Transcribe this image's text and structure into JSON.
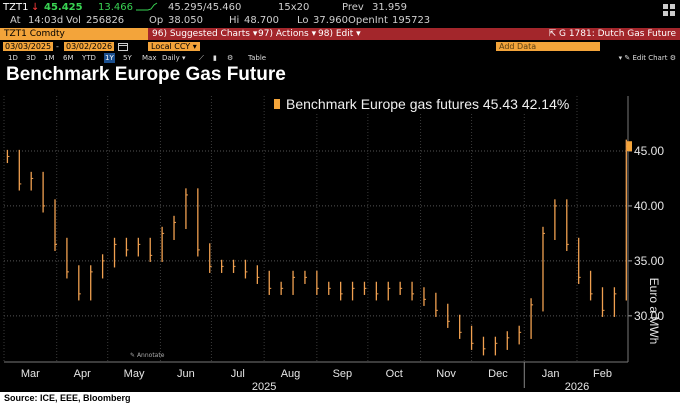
{
  "quote": {
    "ticker": "TZT1",
    "arrow": "↓",
    "last": "45.425",
    "change": "13.466",
    "bid_ask": "45.295/45.460",
    "size": "15x20",
    "prev_label": "Prev",
    "prev": "31.959",
    "at_label": "At",
    "time": "14:03d",
    "vol_label": "Vol",
    "vol": "256826",
    "op_label": "Op",
    "open": "38.050",
    "hi_label": "Hi",
    "high": "48.700",
    "lo_label": "Lo",
    "low": "37.960",
    "oi_label": "OpenInt",
    "open_int": "195723"
  },
  "cmdbar": {
    "ticker": "TZT1 Comdty",
    "items": [
      {
        "num": "96)",
        "label": "Suggested Charts"
      },
      {
        "num": "97)",
        "label": "Actions"
      },
      {
        "num": "98)",
        "label": "Edit"
      }
    ],
    "function": "G 1781: Dutch Gas Future"
  },
  "toolbar": {
    "start_date": "03/03/2025",
    "end_date": "03/02/2026",
    "dash": "-",
    "currency": "Local CCY",
    "add_data": "Add Data",
    "periods": [
      "1D",
      "3D",
      "1M",
      "6M",
      "YTD",
      "1Y",
      "5Y",
      "Max"
    ],
    "selected_period": "1Y",
    "frequency": "Daily",
    "table": "Table",
    "edit_chart": "Edit Chart"
  },
  "title": "Benchmark Europe Gas Future",
  "annotate_label": "Annotate",
  "source": "Source: ICE, EEE, Bloomberg",
  "colors": {
    "accent": "#f3a43a",
    "cmdbar": "#a3262b",
    "positive": "#39d353",
    "negative": "#ff3b3b",
    "selected": "#1b4f8f",
    "series": "#f0a050"
  },
  "chart_data": {
    "type": "bar",
    "subtype": "ohlc",
    "title": "Benchmark Europe Gas Future",
    "ylabel": "Euro a MWh",
    "ylim": [
      25.8,
      50
    ],
    "yticks": [
      30,
      35,
      40,
      45
    ],
    "ytick_labels": [
      "30.00",
      "35.00",
      "40.00",
      "45.00"
    ],
    "grid": true,
    "legend_position": "top-center",
    "series": [
      {
        "name": "Benchmark Europe gas futures",
        "last_value": "45.43",
        "change_pct": "42.14%",
        "x": [
          "2025-03-03",
          "2025-03-10",
          "2025-03-17",
          "2025-03-24",
          "2025-03-31",
          "2025-04-07",
          "2025-04-14",
          "2025-04-21",
          "2025-04-28",
          "2025-05-05",
          "2025-05-12",
          "2025-05-19",
          "2025-05-26",
          "2025-06-02",
          "2025-06-09",
          "2025-06-16",
          "2025-06-23",
          "2025-06-30",
          "2025-07-07",
          "2025-07-14",
          "2025-07-21",
          "2025-07-28",
          "2025-08-04",
          "2025-08-11",
          "2025-08-18",
          "2025-08-25",
          "2025-09-01",
          "2025-09-08",
          "2025-09-15",
          "2025-09-22",
          "2025-09-29",
          "2025-10-06",
          "2025-10-13",
          "2025-10-20",
          "2025-10-27",
          "2025-11-03",
          "2025-11-10",
          "2025-11-17",
          "2025-11-24",
          "2025-12-01",
          "2025-12-08",
          "2025-12-15",
          "2025-12-22",
          "2025-12-29",
          "2026-01-05",
          "2026-01-12",
          "2026-01-19",
          "2026-01-26",
          "2026-02-02",
          "2026-02-09",
          "2026-02-16",
          "2026-02-23",
          "2026-03-02"
        ],
        "values": [
          44.5,
          42.0,
          42.5,
          40.0,
          36.5,
          34.0,
          32.0,
          34.0,
          35.0,
          36.5,
          36.0,
          36.5,
          35.5,
          37.5,
          38.5,
          41.0,
          36.0,
          34.5,
          34.5,
          34.5,
          34.0,
          33.5,
          32.5,
          32.5,
          33.5,
          33.5,
          32.5,
          32.5,
          32.0,
          32.5,
          32.5,
          32.0,
          32.5,
          32.5,
          32.0,
          31.5,
          30.5,
          29.5,
          28.5,
          27.5,
          27.0,
          27.5,
          28.0,
          28.5,
          31.0,
          37.5,
          40.0,
          36.5,
          33.5,
          32.0,
          30.5,
          32.0,
          45.43
        ]
      }
    ],
    "x_tick_labels": [
      "Mar",
      "Apr",
      "May",
      "Jun",
      "Jul",
      "Aug",
      "Sep",
      "Oct",
      "Nov",
      "Dec",
      "Jan",
      "Feb"
    ],
    "x_tick_dates": [
      "2025-03-01",
      "2025-04-01",
      "2025-05-01",
      "2025-06-01",
      "2025-07-01",
      "2025-08-01",
      "2025-09-01",
      "2025-10-01",
      "2025-11-01",
      "2025-12-01",
      "2026-01-01",
      "2026-02-01"
    ],
    "x_year_labels": [
      "2025",
      "2026"
    ],
    "x_year_dates": [
      "2025-08-01",
      "2026-02-01"
    ],
    "xlim": [
      "2025-03-01",
      "2026-03-03"
    ]
  }
}
